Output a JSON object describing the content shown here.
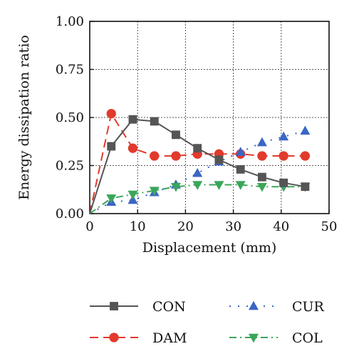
{
  "chart_data": {
    "type": "line",
    "title": "",
    "xlabel": "Displacement (mm)",
    "ylabel": "Energy dissipation ratio",
    "xlim": [
      0,
      50
    ],
    "ylim": [
      0,
      1
    ],
    "xticks": [
      "0",
      "10",
      "20",
      "30",
      "40",
      "50"
    ],
    "yticks": [
      "0.00",
      "0.25",
      "0.50",
      "0.75",
      "1.00"
    ],
    "grid": true,
    "legend_position": "bottom",
    "series": [
      {
        "name": "CON",
        "color": "#555555",
        "line_style": "solid",
        "marker": "square",
        "x": [
          0,
          4.5,
          9,
          13.5,
          18,
          22.5,
          27,
          31.5,
          36,
          40.5,
          45
        ],
        "y": [
          0,
          0.35,
          0.49,
          0.48,
          0.41,
          0.34,
          0.28,
          0.23,
          0.19,
          0.16,
          0.14
        ]
      },
      {
        "name": "CUR",
        "color": "#3a66c4",
        "line_style": "dotted",
        "marker": "triangle-up",
        "x": [
          0,
          4.5,
          9,
          13.5,
          18,
          22.5,
          27,
          31.5,
          36,
          40.5,
          45
        ],
        "y": [
          0,
          0.06,
          0.07,
          0.11,
          0.15,
          0.21,
          0.27,
          0.32,
          0.37,
          0.4,
          0.43
        ]
      },
      {
        "name": "DAM",
        "color": "#e23a2c",
        "line_style": "dashed",
        "marker": "circle",
        "x": [
          0,
          4.5,
          9,
          13.5,
          18,
          22.5,
          27,
          31.5,
          36,
          40.5,
          45
        ],
        "y": [
          0,
          0.52,
          0.34,
          0.3,
          0.3,
          0.31,
          0.31,
          0.31,
          0.3,
          0.3,
          0.3
        ]
      },
      {
        "name": "COL",
        "color": "#3aa65a",
        "line_style": "dashdot",
        "marker": "triangle-down",
        "x": [
          0,
          4.5,
          9,
          13.5,
          18,
          22.5,
          27,
          31.5,
          36,
          40.5,
          45
        ],
        "y": [
          0,
          0.08,
          0.1,
          0.12,
          0.14,
          0.15,
          0.15,
          0.15,
          0.14,
          0.14,
          0.14
        ]
      }
    ]
  }
}
